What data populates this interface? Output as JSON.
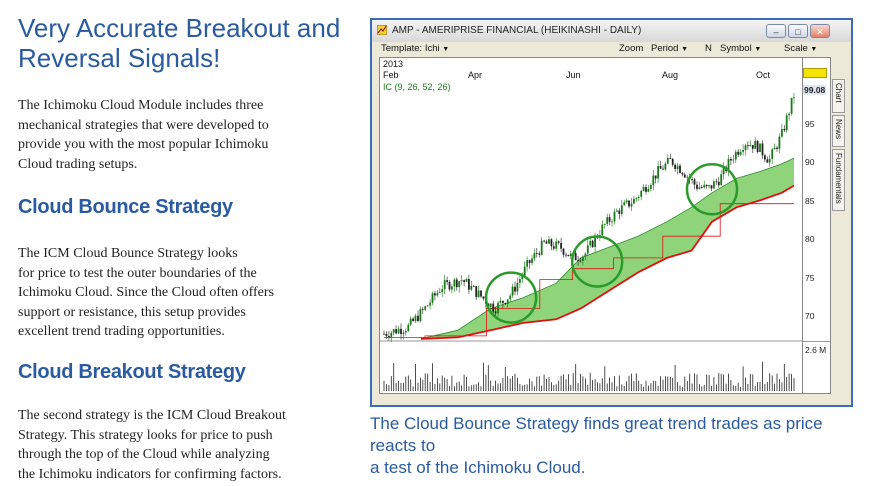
{
  "article": {
    "headline_line1": "Very Accurate Breakout and",
    "headline_line2": "Reversal Signals!",
    "intro_lines": [
      "The Ichimoku Cloud Module includes three",
      "mechanical strategies that were developed to",
      "provide you with the most popular Ichimoku",
      "Cloud trading setups."
    ],
    "bounce_heading": "Cloud Bounce Strategy",
    "bounce_lines": [
      "The ICM Cloud Bounce Strategy looks",
      "for price to test the outer boundaries of the",
      "Ichimoku Cloud. Since the Cloud often offers",
      "support or resistance, this setup provides",
      "excellent trend trading opportunities."
    ],
    "breakout_heading": "Cloud Breakout Strategy",
    "breakout_lines": [
      "The second strategy is the ICM Cloud Breakout",
      "Strategy. This strategy looks for price to push",
      "through the top of the Cloud while analyzing",
      "the Ichimoku indicators for confirming factors."
    ],
    "caption_line1": "The Cloud Bounce Strategy finds great trend trades as price reacts to",
    "caption_line2": "a test of the Ichimoku Cloud."
  },
  "window": {
    "title": "AMP - AMERIPRISE FINANCIAL (HEIKINASHI - DAILY)",
    "min_glyph": "–",
    "max_glyph": "□",
    "close_glyph": "✕"
  },
  "toolbar": {
    "template": "Template: Ichi",
    "zoom": "Zoom",
    "period": "Period",
    "n": "N",
    "symbol": "Symbol",
    "scale": "Scale",
    "dropdown_glyph": "▼"
  },
  "chart": {
    "year": "2013",
    "months": [
      "Feb",
      "Apr",
      "Jun",
      "Aug",
      "Oct"
    ],
    "indicator_label": "IC (9, 26, 52, 26)",
    "price_flag": "99.08",
    "y_ticks": [
      "95",
      "90",
      "85",
      "80",
      "75",
      "70"
    ],
    "volume_label": "2.6 M",
    "side_tabs": [
      "Chart",
      "News",
      "Fundamentals"
    ],
    "colors": {
      "cloud": "#8fd47a",
      "cloud_edge": "#2f8a2f",
      "kijun": "#e01010",
      "candle_up": "#1a7a1a",
      "candle_down": "#222222",
      "highlight_circle": "#2a9a2a",
      "price_flag": "#f5e400"
    }
  },
  "chart_data": {
    "type": "candlestick",
    "y_ticks": [
      70,
      75,
      80,
      85,
      90,
      95
    ],
    "ylim": [
      65.5,
      100.5
    ],
    "price_path": [
      [
        0,
        66.5
      ],
      [
        6,
        67.5
      ],
      [
        10,
        70
      ],
      [
        14,
        73
      ],
      [
        19,
        74
      ],
      [
        23,
        72
      ],
      [
        27,
        70
      ],
      [
        31,
        72
      ],
      [
        35,
        76
      ],
      [
        39,
        79
      ],
      [
        43,
        78.5
      ],
      [
        46,
        77
      ],
      [
        49,
        77.5
      ],
      [
        53,
        81
      ],
      [
        57,
        83.5
      ],
      [
        61,
        85
      ],
      [
        64,
        87
      ],
      [
        67,
        89
      ],
      [
        70,
        90.5
      ],
      [
        73,
        89
      ],
      [
        76,
        87
      ],
      [
        79,
        86.5
      ],
      [
        82,
        88
      ],
      [
        85,
        91
      ],
      [
        88,
        93
      ],
      [
        91,
        92.5
      ],
      [
        94,
        90.5
      ],
      [
        97,
        94
      ],
      [
        100,
        99.5
      ]
    ],
    "cloud_upper": [
      [
        9,
        65.8
      ],
      [
        18,
        67
      ],
      [
        26,
        70
      ],
      [
        34,
        71.5
      ],
      [
        42,
        73.5
      ],
      [
        48,
        77
      ],
      [
        55,
        78.5
      ],
      [
        62,
        80
      ],
      [
        69,
        82
      ],
      [
        75,
        84
      ],
      [
        80,
        86
      ],
      [
        86,
        88
      ],
      [
        92,
        89
      ],
      [
        97,
        90
      ],
      [
        100,
        90.8
      ]
    ],
    "cloud_lower": [
      [
        9,
        65.8
      ],
      [
        18,
        66
      ],
      [
        26,
        67
      ],
      [
        34,
        68
      ],
      [
        42,
        68.5
      ],
      [
        48,
        70
      ],
      [
        55,
        72.5
      ],
      [
        62,
        75
      ],
      [
        69,
        77
      ],
      [
        75,
        78
      ],
      [
        80,
        82
      ],
      [
        86,
        84
      ],
      [
        92,
        85
      ],
      [
        97,
        86
      ],
      [
        100,
        87
      ]
    ],
    "kijun": [
      [
        0,
        66
      ],
      [
        10,
        66
      ],
      [
        10,
        66.2
      ],
      [
        25,
        66.2
      ],
      [
        25,
        70
      ],
      [
        38,
        70
      ],
      [
        38,
        74
      ],
      [
        46,
        74
      ],
      [
        46,
        75.5
      ],
      [
        56,
        75.5
      ],
      [
        56,
        77
      ],
      [
        68,
        77
      ],
      [
        68,
        80
      ],
      [
        82,
        80
      ],
      [
        82,
        84.5
      ],
      [
        100,
        84.5
      ]
    ],
    "highlight_circles": [
      [
        31,
        71.5
      ],
      [
        52,
        76.5
      ],
      [
        80,
        86.5
      ]
    ]
  }
}
